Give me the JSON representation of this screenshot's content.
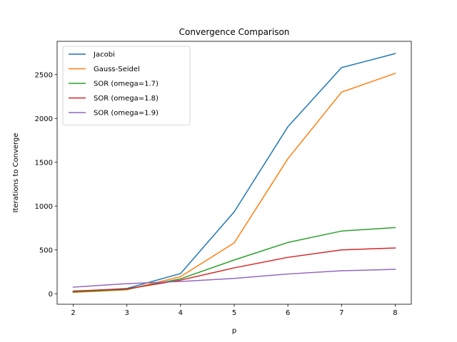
{
  "chart_data": {
    "type": "line",
    "title": "Convergence Comparison",
    "xlabel": "p",
    "ylabel": "Iterations to Converge",
    "x": [
      2,
      3,
      4,
      5,
      6,
      7,
      8
    ],
    "xlim": [
      1.7,
      8.3
    ],
    "ylim": [
      -120,
      2880
    ],
    "xticks": [
      2,
      3,
      4,
      5,
      6,
      7,
      8
    ],
    "yticks": [
      0,
      500,
      1000,
      1500,
      2000,
      2500
    ],
    "grid": false,
    "legend_position": "top-left",
    "series": [
      {
        "name": "Jacobi",
        "color": "#1f77b4",
        "values": [
          25,
          60,
          230,
          935,
          1905,
          2580,
          2740
        ]
      },
      {
        "name": "Gauss-Seidel",
        "color": "#ff7f0e",
        "values": [
          15,
          45,
          195,
          580,
          1540,
          2300,
          2515
        ]
      },
      {
        "name": "SOR (omega=1.7)",
        "color": "#2ca02c",
        "values": [
          20,
          50,
          170,
          385,
          585,
          715,
          755
        ]
      },
      {
        "name": "SOR (omega=1.8)",
        "color": "#d62728",
        "values": [
          30,
          55,
          155,
          295,
          415,
          500,
          522
        ]
      },
      {
        "name": "SOR (omega=1.9)",
        "color": "#9467bd",
        "values": [
          75,
          115,
          140,
          175,
          225,
          262,
          278
        ]
      }
    ]
  }
}
